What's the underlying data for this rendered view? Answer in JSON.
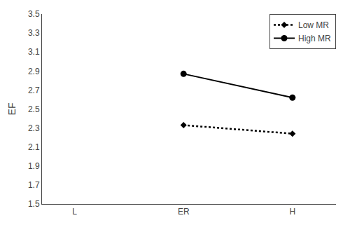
{
  "chart_data": {
    "type": "line",
    "x": [
      1,
      2
    ],
    "xlim": [
      -0.3,
      2.4
    ],
    "xticks": [
      {
        "value": 0,
        "label": "L"
      },
      {
        "value": 1,
        "label": "ER"
      },
      {
        "value": 2,
        "label": "H"
      }
    ],
    "ylim": [
      1.5,
      3.5
    ],
    "yticks": [
      1.5,
      1.7,
      1.9,
      2.1,
      2.3,
      2.5,
      2.7,
      2.9,
      3.1,
      3.3,
      3.5
    ],
    "ylabel": "EF",
    "series": [
      {
        "name": "Low MR",
        "color": "#000000",
        "values": [
          2.33,
          2.24
        ],
        "line_style": "dotted",
        "marker": "diamond"
      },
      {
        "name": "High MR",
        "color": "#000000",
        "values": [
          2.87,
          2.62
        ],
        "line_style": "solid",
        "marker": "circle"
      }
    ],
    "legend": "upper right",
    "grid": false
  }
}
